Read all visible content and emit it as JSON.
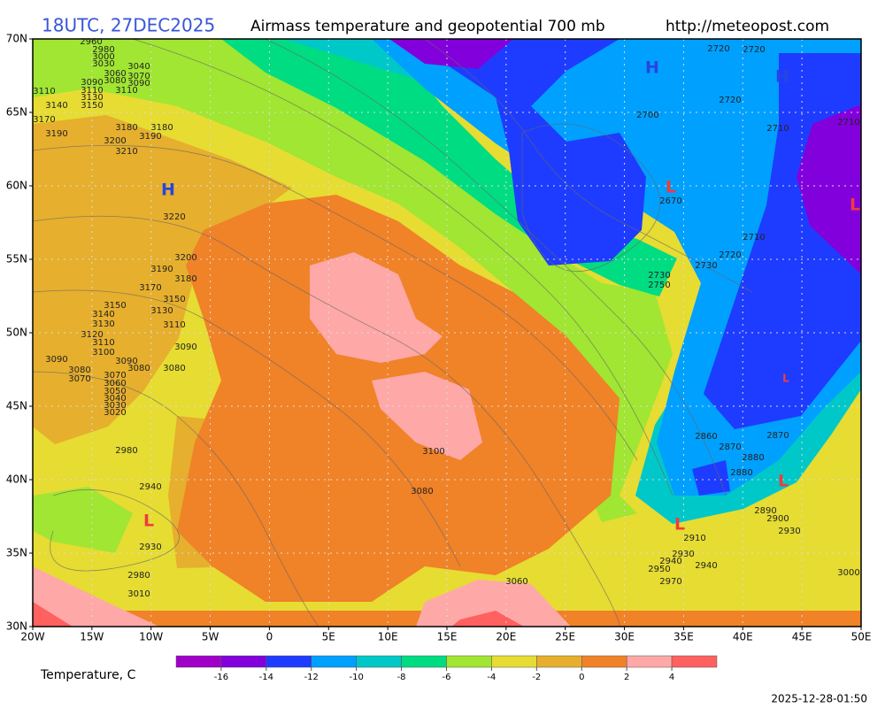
{
  "header": {
    "time": "18UTC, 27DEC2025",
    "title": "Airmass temperature and geopotential 700 mb",
    "url": "http://meteopost.com"
  },
  "map": {
    "lon_labels": [
      "20W",
      "15W",
      "10W",
      "5W",
      "0",
      "5E",
      "10E",
      "15E",
      "20E",
      "25E",
      "30E",
      "35E",
      "40E",
      "45E",
      "50E"
    ],
    "lat_labels": [
      "70N",
      "65N",
      "60N",
      "55N",
      "50N",
      "45N",
      "40N",
      "35N",
      "30N"
    ],
    "contour_labels": [
      2960,
      2980,
      3000,
      3030,
      3040,
      3060,
      3070,
      3080,
      3090,
      3090,
      3110,
      3110,
      3110,
      3130,
      3140,
      3150,
      3170,
      3180,
      3180,
      3190,
      3190,
      3200,
      3210,
      3220,
      3200,
      3190,
      3180,
      3170,
      3150,
      3150,
      3130,
      3140,
      3130,
      3110,
      3120,
      3110,
      3100,
      3090,
      3090,
      3090,
      3080,
      3080,
      3080,
      3070,
      3070,
      3060,
      3050,
      3040,
      3030,
      3020,
      2980,
      2940,
      2930,
      2980,
      3010,
      3100,
      3080,
      3060,
      2970,
      2950,
      2940,
      2930,
      2940,
      2910,
      2930,
      2900,
      2890,
      2880,
      2880,
      2870,
      2860,
      2870,
      3000,
      2670,
      2700,
      2720,
      2720,
      2720,
      2710,
      2710,
      2710,
      2720,
      2730,
      2730,
      2750
    ],
    "pressure_centers": [
      "H",
      "H",
      "H",
      "L",
      "L",
      "L",
      "L",
      "L",
      "L"
    ]
  },
  "colorbar": {
    "label": "Temperature, C",
    "ticks": [
      -16,
      -14,
      -12,
      -10,
      -8,
      -6,
      -4,
      -2,
      0,
      2,
      4
    ],
    "colors": [
      "#a000c8",
      "#8200dc",
      "#1e3cff",
      "#00a0ff",
      "#00c8c8",
      "#00dc82",
      "#a0e632",
      "#e6dc32",
      "#e6af2d",
      "#f08228",
      "#ffa8a8",
      "#ff6060"
    ]
  },
  "timestamp": "2025-12-28-01:50"
}
